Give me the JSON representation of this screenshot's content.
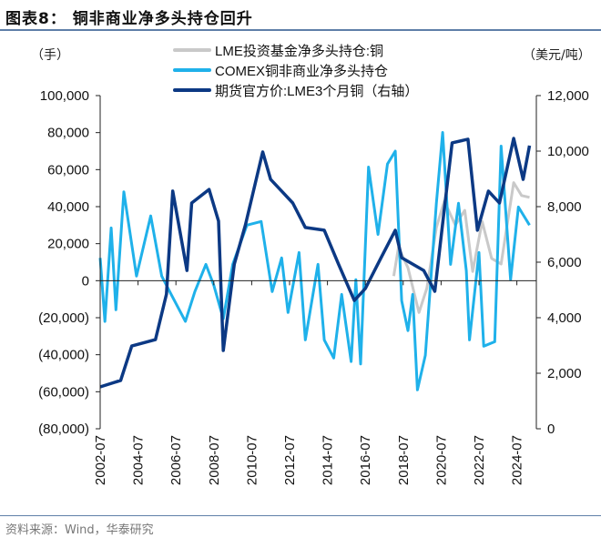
{
  "title": "图表8： 铜非商业净多头持仓回升",
  "left_unit": "（手）",
  "right_unit": "（美元/吨）",
  "source": "资料来源：Wind，华泰研究",
  "chart_data": {
    "type": "line",
    "title": "图表8： 铜非商业净多头持仓回升",
    "ylabel_left": "（手）",
    "ylabel_right": "（美元/吨）",
    "y_left_range": [
      -80000,
      100000
    ],
    "y_left_ticks": [
      "100,000",
      "80,000",
      "60,000",
      "40,000",
      "20,000",
      "0",
      "(20,000)",
      "(40,000)",
      "(60,000)",
      "(80,000)"
    ],
    "y_right_range": [
      0,
      12000
    ],
    "y_right_ticks": [
      "12,000",
      "10,000",
      "8,000",
      "6,000",
      "4,000",
      "2,000",
      "0"
    ],
    "x_ticks": [
      "2002-07",
      "2004-07",
      "2006-07",
      "2008-07",
      "2010-07",
      "2012-07",
      "2014-07",
      "2016-07",
      "2018-07",
      "2020-07",
      "2022-07",
      "2024-07"
    ],
    "legend_placement": "top",
    "grid": false,
    "series": [
      {
        "name": "LME投资基金净多头持仓:铜",
        "axis": "left",
        "color": "#c9c9c9",
        "points": [
          [
            "2018-01",
            2500
          ],
          [
            "2018-04",
            18000
          ],
          [
            "2018-10",
            7000
          ],
          [
            "2019-05",
            -17200
          ],
          [
            "2019-10",
            -4000
          ],
          [
            "2020-04",
            28700
          ],
          [
            "2020-09",
            43000
          ],
          [
            "2021-04",
            30000
          ],
          [
            "2021-10",
            38000
          ],
          [
            "2022-03",
            5000
          ],
          [
            "2022-09",
            32000
          ],
          [
            "2023-03",
            12000
          ],
          [
            "2023-09",
            9000
          ],
          [
            "2024-05",
            53000
          ],
          [
            "2024-10",
            46000
          ],
          [
            "2025-03",
            45000
          ]
        ]
      },
      {
        "name": "COMEX铜非商业净多头持仓",
        "axis": "left",
        "color": "#1fb1ea",
        "points": [
          [
            "2002-07",
            12300
          ],
          [
            "2002-10",
            -22000
          ],
          [
            "2003-02",
            28500
          ],
          [
            "2003-05",
            -15700
          ],
          [
            "2003-10",
            48000
          ],
          [
            "2004-06",
            2500
          ],
          [
            "2005-03",
            35000
          ],
          [
            "2005-10",
            2500
          ],
          [
            "2006-04",
            -7400
          ],
          [
            "2007-01",
            -22000
          ],
          [
            "2007-07",
            -5900
          ],
          [
            "2008-02",
            8800
          ],
          [
            "2008-07",
            -2500
          ],
          [
            "2009-01",
            -20600
          ],
          [
            "2009-07",
            8800
          ],
          [
            "2010-04",
            30000
          ],
          [
            "2011-01",
            32000
          ],
          [
            "2011-08",
            -5900
          ],
          [
            "2012-02",
            12300
          ],
          [
            "2012-06",
            -17200
          ],
          [
            "2013-01",
            15200
          ],
          [
            "2013-05",
            -32000
          ],
          [
            "2014-01",
            8800
          ],
          [
            "2014-05",
            -32000
          ],
          [
            "2014-11",
            -41800
          ],
          [
            "2015-04",
            -7400
          ],
          [
            "2015-10",
            -43700
          ],
          [
            "2016-01",
            500
          ],
          [
            "2016-04",
            -45000
          ],
          [
            "2016-09",
            61400
          ],
          [
            "2017-03",
            25000
          ],
          [
            "2017-09",
            63000
          ],
          [
            "2018-02",
            70000
          ],
          [
            "2018-06",
            -10800
          ],
          [
            "2018-10",
            -27000
          ],
          [
            "2019-01",
            -7400
          ],
          [
            "2019-04",
            -59000
          ],
          [
            "2019-09",
            -40300
          ],
          [
            "2020-04",
            41800
          ],
          [
            "2020-08",
            80100
          ],
          [
            "2021-01",
            8800
          ],
          [
            "2021-06",
            41800
          ],
          [
            "2021-11",
            5400
          ],
          [
            "2022-01",
            -32000
          ],
          [
            "2022-07",
            15200
          ],
          [
            "2022-10",
            -35400
          ],
          [
            "2023-05",
            -33000
          ],
          [
            "2023-09",
            72700
          ],
          [
            "2024-03",
            500
          ],
          [
            "2024-08",
            39800
          ],
          [
            "2025-03",
            30000
          ]
        ]
      },
      {
        "name": "期货官方价:LME3个月铜（右轴）",
        "axis": "right",
        "color": "#0c3984",
        "points": [
          [
            "2002-07",
            1508
          ],
          [
            "2003-08",
            1740
          ],
          [
            "2004-03",
            2980
          ],
          [
            "2005-06",
            3210
          ],
          [
            "2006-01",
            4850
          ],
          [
            "2006-05",
            8560
          ],
          [
            "2007-02",
            5700
          ],
          [
            "2007-05",
            8130
          ],
          [
            "2008-04",
            8620
          ],
          [
            "2008-10",
            7480
          ],
          [
            "2009-01",
            2820
          ],
          [
            "2009-08",
            5930
          ],
          [
            "2010-03",
            7340
          ],
          [
            "2011-02",
            9970
          ],
          [
            "2011-07",
            8980
          ],
          [
            "2012-02",
            8560
          ],
          [
            "2012-09",
            8130
          ],
          [
            "2013-05",
            7250
          ],
          [
            "2014-05",
            7150
          ],
          [
            "2015-02",
            5930
          ],
          [
            "2015-12",
            4620
          ],
          [
            "2016-07",
            5050
          ],
          [
            "2017-05",
            6160
          ],
          [
            "2018-02",
            7150
          ],
          [
            "2018-06",
            6160
          ],
          [
            "2019-08",
            5700
          ],
          [
            "2020-03",
            4950
          ],
          [
            "2020-09",
            7900
          ],
          [
            "2021-02",
            10300
          ],
          [
            "2021-12",
            10430
          ],
          [
            "2022-06",
            7150
          ],
          [
            "2023-01",
            8560
          ],
          [
            "2023-08",
            8130
          ],
          [
            "2024-05",
            10460
          ],
          [
            "2024-11",
            8980
          ],
          [
            "2025-03",
            10200
          ]
        ]
      }
    ]
  }
}
